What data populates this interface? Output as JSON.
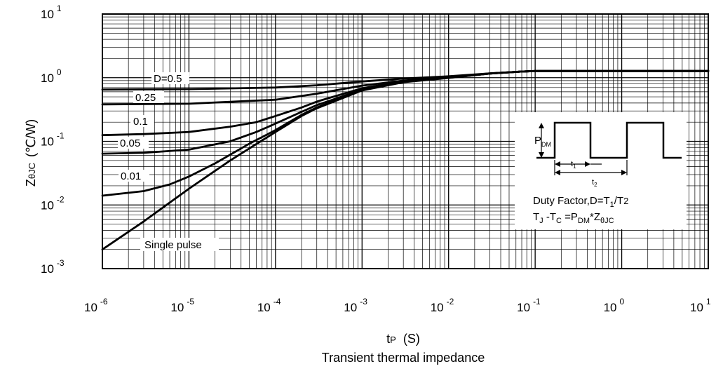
{
  "chart_data": {
    "type": "line",
    "caption": "Transient thermal impedance",
    "xlabel": {
      "main": "t",
      "sub": "P",
      "unit": "(S)"
    },
    "ylabel": {
      "main": "Z",
      "sub": "θJC",
      "unit": "(℃/W)"
    },
    "xscale": "log",
    "yscale": "log",
    "xlim": [
      1e-06,
      10
    ],
    "ylim": [
      0.001,
      10
    ],
    "grid": true,
    "x_ticks": [
      {
        "base": "10",
        "exp": "-6"
      },
      {
        "base": "10",
        "exp": "-5"
      },
      {
        "base": "10",
        "exp": "-4"
      },
      {
        "base": "10",
        "exp": "-3"
      },
      {
        "base": "10",
        "exp": "-2"
      },
      {
        "base": "10",
        "exp": "-1"
      },
      {
        "base": "10",
        "exp": "0"
      },
      {
        "base": "10",
        "exp": "1"
      }
    ],
    "y_ticks": [
      {
        "base": "10",
        "exp": "1"
      },
      {
        "base": "10",
        "exp": "0"
      },
      {
        "base": "10",
        "exp": "-1"
      },
      {
        "base": "10",
        "exp": "-2"
      },
      {
        "base": "10",
        "exp": "-3"
      }
    ],
    "series": [
      {
        "name": "D=0.5",
        "x": [
          1e-06,
          1e-05,
          0.0001,
          0.0003,
          0.001,
          0.003,
          0.01,
          0.03,
          0.07,
          0.1,
          1,
          10
        ],
        "y": [
          0.65,
          0.66,
          0.7,
          0.76,
          0.87,
          0.97,
          1.05,
          1.17,
          1.25,
          1.27,
          1.27,
          1.27
        ]
      },
      {
        "name": "0.25",
        "x": [
          1e-06,
          1e-05,
          0.0001,
          0.0003,
          0.001,
          0.003,
          0.01,
          0.03,
          0.07,
          0.1,
          1,
          10
        ],
        "y": [
          0.38,
          0.39,
          0.45,
          0.56,
          0.75,
          0.9,
          1.02,
          1.17,
          1.25,
          1.27,
          1.27,
          1.27
        ]
      },
      {
        "name": "0.1",
        "x": [
          1e-06,
          3e-06,
          1e-05,
          3e-05,
          6e-05,
          0.0001,
          0.0002,
          0.0003,
          0.001,
          0.003,
          0.01,
          0.03,
          0.07,
          0.1,
          1,
          10
        ],
        "y": [
          0.125,
          0.13,
          0.14,
          0.17,
          0.2,
          0.25,
          0.34,
          0.42,
          0.68,
          0.88,
          1.01,
          1.16,
          1.25,
          1.27,
          1.27,
          1.27
        ]
      },
      {
        "name": "0.05",
        "x": [
          1e-06,
          3e-06,
          1e-05,
          3e-05,
          6e-05,
          0.0001,
          0.0002,
          0.0003,
          0.001,
          0.003,
          0.01,
          0.03,
          0.07,
          0.1,
          1,
          10
        ],
        "y": [
          0.064,
          0.066,
          0.074,
          0.1,
          0.14,
          0.19,
          0.29,
          0.37,
          0.65,
          0.87,
          1.0,
          1.16,
          1.25,
          1.27,
          1.27,
          1.27
        ]
      },
      {
        "name": "0.01",
        "x": [
          1e-06,
          3e-06,
          6e-06,
          1e-05,
          2e-05,
          5e-05,
          0.0001,
          0.0002,
          0.0003,
          0.001,
          0.003,
          0.01,
          0.03,
          0.07,
          0.1,
          1,
          10
        ],
        "y": [
          0.014,
          0.0165,
          0.021,
          0.028,
          0.045,
          0.092,
          0.15,
          0.26,
          0.34,
          0.64,
          0.86,
          1.0,
          1.16,
          1.25,
          1.27,
          1.27,
          1.27
        ]
      },
      {
        "name": "Single pulse",
        "x": [
          1e-06,
          3e-06,
          1e-05,
          3e-05,
          0.0001,
          0.0002,
          0.0003,
          0.001,
          0.003,
          0.01,
          0.03,
          0.07,
          0.1,
          1,
          10
        ],
        "y": [
          0.002,
          0.0055,
          0.018,
          0.05,
          0.14,
          0.25,
          0.33,
          0.63,
          0.85,
          0.99,
          1.16,
          1.25,
          1.27,
          1.27,
          1.27
        ]
      }
    ],
    "inset": {
      "p_dm": {
        "main": "P",
        "sub": "DM"
      },
      "t1": {
        "main": "t",
        "sub": "1"
      },
      "t2": {
        "main": "t",
        "sub": "2"
      },
      "duty_line": {
        "prefix": "Duty Factor,D=T",
        "sub1": "1",
        "mid": "/T",
        "sub2": "2"
      },
      "junction_line": {
        "tj": "T",
        "tj_sub": "J",
        "minus": " -T",
        "tc_sub": "C",
        "eq": " =P",
        "pdm_sub": "DM",
        "star": "*Z",
        "z_sub": "θJC"
      }
    }
  }
}
